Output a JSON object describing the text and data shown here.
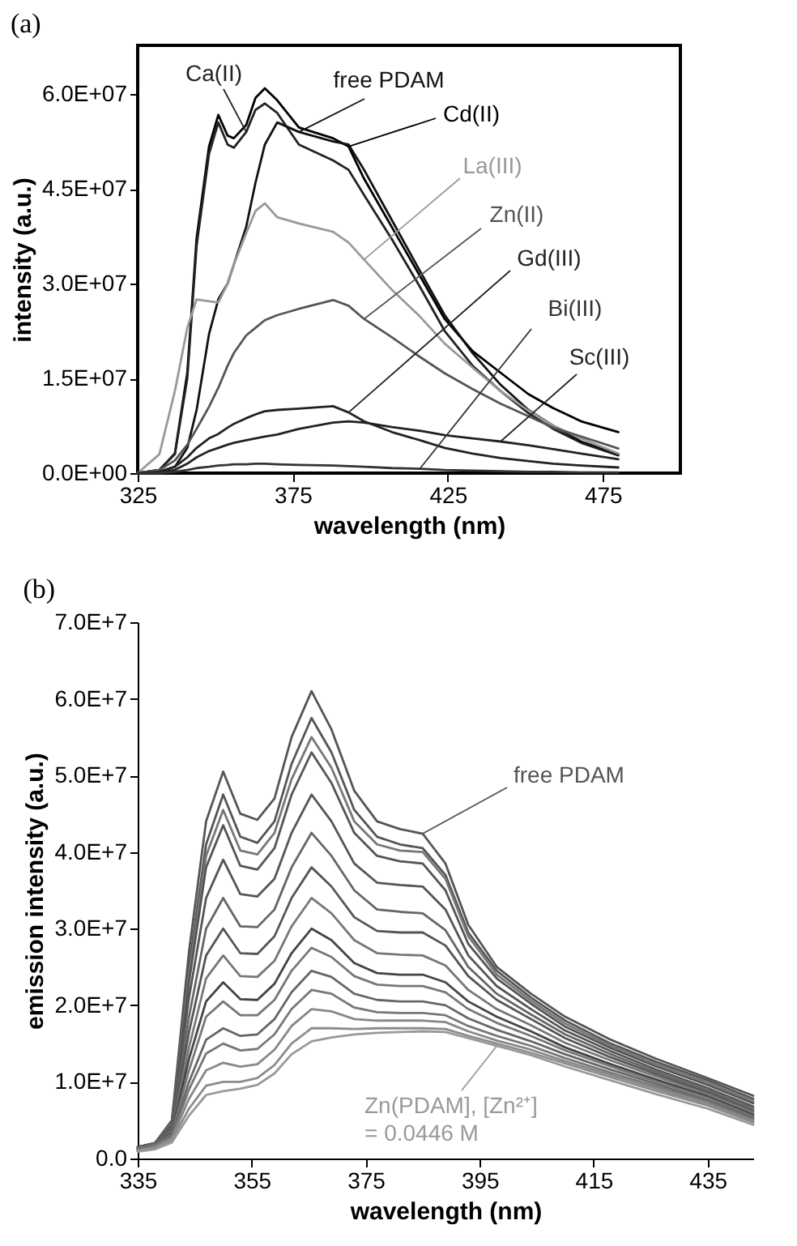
{
  "chart_data": [
    {
      "type": "line",
      "title": "(a)",
      "xlabel": "wavelength (nm)",
      "ylabel": "intensity (a.u.)",
      "xlim": [
        325,
        500
      ],
      "xticks": [
        325,
        375,
        425,
        475
      ],
      "ylim": [
        0,
        67700000.0
      ],
      "yticks": [
        {
          "value": 0,
          "label": "0.0E+00"
        },
        {
          "value": 15000000.0,
          "label": "1.5E+07"
        },
        {
          "value": 30000000.0,
          "label": "3.0E+07"
        },
        {
          "value": 45000000.0,
          "label": "4.5E+07"
        },
        {
          "value": 60000000.0,
          "label": "6.0E+07"
        }
      ],
      "grid": false,
      "marker": "none",
      "line_style": "solid",
      "x": [
        325,
        332,
        337,
        341,
        344,
        348,
        351,
        354,
        356,
        360,
        363,
        366,
        370,
        377,
        388,
        393,
        398,
        407,
        416,
        424,
        433,
        442,
        451,
        459,
        468,
        480
      ],
      "series": [
        {
          "name": "Cd(II)",
          "color": "#000000",
          "values": [
            0,
            500000.0,
            3100000.0,
            15900000.0,
            37200000.0,
            51700000.0,
            56700000.0,
            53400000.0,
            53000000.0,
            55100000.0,
            59400000.0,
            60900000.0,
            59000000.0,
            54700000.0,
            53000000.0,
            51700000.0,
            46600000.0,
            38900000.0,
            31200000.0,
            24400000.0,
            19300000.0,
            15900000.0,
            12500000.0,
            10300000.0,
            8200000.0,
            6500000.0
          ]
        },
        {
          "name": "Ca(II)",
          "color": "#222222",
          "values": [
            0,
            500000.0,
            3000000.0,
            15000000.0,
            36000000.0,
            50500000.0,
            55500000.0,
            52000000.0,
            51500000.0,
            54000000.0,
            57500000.0,
            58500000.0,
            57000000.0,
            52000000.0,
            49500000.0,
            48000000.0,
            44000000.0,
            37000000.0,
            29500000.0,
            22500000.0,
            17000000.0,
            13000000.0,
            9500000.0,
            7000000.0,
            4800000.0,
            2800000.0
          ]
        },
        {
          "name": "free PDAM",
          "color": "#111111",
          "values": [
            0,
            200000.0,
            1000000.0,
            4000000.0,
            10000000.0,
            22000000.0,
            27500000.0,
            30000000.0,
            33000000.0,
            39000000.0,
            46000000.0,
            52000000.0,
            55500000.0,
            54000000.0,
            52500000.0,
            52000000.0,
            48000000.0,
            40000000.0,
            32000000.0,
            25000000.0,
            19000000.0,
            14000000.0,
            10000000.0,
            7500000.0,
            5000000.0,
            3000000.0
          ]
        },
        {
          "name": "La(III)",
          "color": "#999999",
          "values": [
            0,
            3000000.0,
            13000000.0,
            23000000.0,
            27500000.0,
            27200000.0,
            27000000.0,
            30000000.0,
            33000000.0,
            38000000.0,
            41500000.0,
            42700000.0,
            40500000.0,
            39500000.0,
            38200000.0,
            36500000.0,
            33800000.0,
            29000000.0,
            24800000.0,
            20500000.0,
            16700000.0,
            13000000.0,
            9900000.0,
            7500000.0,
            5500000.0,
            3100000.0
          ]
        },
        {
          "name": "Zn(II)",
          "color": "#555555",
          "values": [
            0,
            500000.0,
            2000000.0,
            4500000.0,
            7000000.0,
            10500000.0,
            13500000.0,
            17000000.0,
            19000000.0,
            21800000.0,
            23000000.0,
            24200000.0,
            25000000.0,
            26000000.0,
            27400000.0,
            26500000.0,
            24400000.0,
            21500000.0,
            18400000.0,
            15800000.0,
            13300000.0,
            11000000.0,
            9000000.0,
            7200000.0,
            5800000.0,
            3900000.0
          ]
        },
        {
          "name": "Gd(III)",
          "color": "#222222",
          "values": [
            0,
            200000.0,
            1000000.0,
            2500000.0,
            4000000.0,
            5500000.0,
            6200000.0,
            7200000.0,
            7800000.0,
            8700000.0,
            9300000.0,
            9800000.0,
            10000000.0,
            10200000.0,
            10600000.0,
            9600000.0,
            8200000.0,
            6500000.0,
            5200000.0,
            4000000.0,
            3100000.0,
            2400000.0,
            1900000.0,
            1500000.0,
            1200000.0,
            900000.0
          ]
        },
        {
          "name": "Sc(III)",
          "color": "#222222",
          "values": [
            0,
            100000.0,
            500000.0,
            1500000.0,
            2500000.0,
            3500000.0,
            4000000.0,
            4500000.0,
            4800000.0,
            5200000.0,
            5500000.0,
            5800000.0,
            6100000.0,
            7000000.0,
            8000000.0,
            8200000.0,
            8000000.0,
            7300000.0,
            6700000.0,
            6000000.0,
            5500000.0,
            5000000.0,
            4400000.0,
            3800000.0,
            3100000.0,
            2200000.0
          ]
        },
        {
          "name": "Bi(III)",
          "color": "#333333",
          "values": [
            0,
            0,
            200000.0,
            500000.0,
            800000.0,
            1000000.0,
            1200000.0,
            1300000.0,
            1400000.0,
            1400000.0,
            1500000.0,
            1500000.0,
            1400000.0,
            1300000.0,
            1200000.0,
            1100000.0,
            1000000.0,
            800000.0,
            700000.0,
            500000.0,
            400000.0,
            300000.0,
            200000.0,
            200000.0,
            100000.0,
            100000.0
          ]
        }
      ]
    },
    {
      "type": "line",
      "title": "(b)",
      "xlabel": "wavelength (nm)",
      "ylabel": "emission intensity (a.u.)",
      "xlim": [
        335,
        443
      ],
      "xticks": [
        335,
        355,
        375,
        395,
        415,
        435
      ],
      "ylim": [
        0,
        70000000.0
      ],
      "yticks": [
        {
          "value": 0,
          "label": "0.0"
        },
        {
          "value": 10000000.0,
          "label": "1.0E+7"
        },
        {
          "value": 20000000.0,
          "label": "2.0E+7"
        },
        {
          "value": 30000000.0,
          "label": "3.0E+7"
        },
        {
          "value": 40000000.0,
          "label": "4.0E+7"
        },
        {
          "value": 50000000.0,
          "label": "5.0E+7"
        },
        {
          "value": 60000000.0,
          "label": "6.0E+7"
        },
        {
          "value": 70000000.0,
          "label": "7.0E+7"
        }
      ],
      "grid": false,
      "marker": "none",
      "line_style": "solid",
      "x": [
        335,
        338,
        341,
        344,
        347,
        350,
        353,
        356,
        359,
        362,
        365.5,
        369,
        373,
        377,
        381,
        385,
        389,
        393,
        398,
        404,
        410,
        418,
        426,
        435,
        443
      ],
      "series": [
        {
          "name": "free PDAM",
          "color": "#555555",
          "values": [
            1500000.0,
            2000000.0,
            5000000.0,
            27000000.0,
            44000000.0,
            50500000.0,
            45000000.0,
            44200000.0,
            47000000.0,
            55000000.0,
            61000000.0,
            56000000.0,
            48000000.0,
            44000000.0,
            43000000.0,
            42400000.0,
            38500000.0,
            30500000.0,
            25000000.0,
            21500000.0,
            18500000.0,
            15500000.0,
            13000000.0,
            10500000.0,
            8200000.0
          ]
        },
        {
          "color": "#555555",
          "values": [
            1500000.0,
            2000000.0,
            4800000.0,
            25000000.0,
            41000000.0,
            47500000.0,
            42000000.0,
            41200000.0,
            44000000.0,
            51500000.0,
            57500000.0,
            53000000.0,
            45500000.0,
            42000000.0,
            41000000.0,
            40500000.0,
            37000000.0,
            29500000.0,
            24500000.0,
            21000000.0,
            18000000.0,
            15000000.0,
            12600000.0,
            10200000.0,
            7800000.0
          ]
        },
        {
          "color": "#777777",
          "values": [
            1500000.0,
            2000000.0,
            4600000.0,
            24000000.0,
            39500000.0,
            45500000.0,
            40200000.0,
            39700000.0,
            42500000.0,
            49500000.0,
            55000000.0,
            51000000.0,
            44000000.0,
            41000000.0,
            40200000.0,
            40000000.0,
            36500000.0,
            29000000.0,
            24000000.0,
            20600000.0,
            17600000.0,
            14700000.0,
            12300000.0,
            9900000.0,
            7500000.0
          ]
        },
        {
          "color": "#555555",
          "values": [
            1500000.0,
            2000000.0,
            4400000.0,
            23000000.0,
            38000000.0,
            43500000.0,
            38200000.0,
            37700000.0,
            40500000.0,
            47500000.0,
            53000000.0,
            49000000.0,
            42500000.0,
            39500000.0,
            38800000.0,
            38500000.0,
            35000000.0,
            28000000.0,
            23500000.0,
            20200000.0,
            17200000.0,
            14400000.0,
            12000000.0,
            9600000.0,
            7200000.0
          ]
        },
        {
          "color": "#555555",
          "values": [
            1400000.0,
            1900000.0,
            4200000.0,
            21000000.0,
            34000000.0,
            39000000.0,
            34500000.0,
            34200000.0,
            36500000.0,
            42500000.0,
            47500000.0,
            44000000.0,
            38500000.0,
            36000000.0,
            35700000.0,
            35500000.0,
            32500000.0,
            26500000.0,
            22500000.0,
            19500000.0,
            16700000.0,
            14000000.0,
            11600000.0,
            9200000.0,
            6800000.0
          ]
        },
        {
          "color": "#666666",
          "values": [
            1400000.0,
            1900000.0,
            4000000.0,
            18500000.0,
            30000000.0,
            34000000.0,
            30300000.0,
            30200000.0,
            32500000.0,
            38000000.0,
            42500000.0,
            39500000.0,
            35000000.0,
            32500000.0,
            32200000.0,
            32000000.0,
            29800000.0,
            25000000.0,
            21500000.0,
            18800000.0,
            16200000.0,
            13600000.0,
            11300000.0,
            8900000.0,
            6500000.0
          ]
        },
        {
          "color": "#555555",
          "values": [
            1300000.0,
            1800000.0,
            3800000.0,
            16500000.0,
            26500000.0,
            30000000.0,
            26800000.0,
            26700000.0,
            29000000.0,
            34000000.0,
            38000000.0,
            35500000.0,
            31500000.0,
            29700000.0,
            29500000.0,
            29500000.0,
            27800000.0,
            23800000.0,
            20700000.0,
            18200000.0,
            15700000.0,
            13200000.0,
            11000000.0,
            8600000.0,
            6200000.0
          ]
        },
        {
          "color": "#777777",
          "values": [
            1300000.0,
            1800000.0,
            3600000.0,
            14500000.0,
            23500000.0,
            26500000.0,
            23800000.0,
            23700000.0,
            25800000.0,
            30300000.0,
            34000000.0,
            32000000.0,
            28500000.0,
            26800000.0,
            26600000.0,
            26500000.0,
            25200000.0,
            22000000.0,
            19500000.0,
            17400000.0,
            15100000.0,
            12800000.0,
            10700000.0,
            8400000.0,
            6000000.0
          ]
        },
        {
          "color": "#444444",
          "values": [
            1200000.0,
            1700000.0,
            3400000.0,
            13000000.0,
            20500000.0,
            23000000.0,
            20800000.0,
            20700000.0,
            22800000.0,
            26800000.0,
            30000000.0,
            28500000.0,
            25500000.0,
            24200000.0,
            24000000.0,
            24000000.0,
            23000000.0,
            20500000.0,
            18500000.0,
            16600000.0,
            14500000.0,
            12300000.0,
            10300000.0,
            8100000.0,
            5700000.0
          ]
        },
        {
          "color": "#777777",
          "values": [
            1200000.0,
            1700000.0,
            3200000.0,
            11500000.0,
            18500000.0,
            20500000.0,
            18700000.0,
            18700000.0,
            20700000.0,
            24500000.0,
            27500000.0,
            26300000.0,
            23800000.0,
            22700000.0,
            22500000.0,
            22500000.0,
            21700000.0,
            19500000.0,
            17700000.0,
            16000000.0,
            14100000.0,
            12000000.0,
            10000000.0,
            7900000.0,
            5500000.0
          ]
        },
        {
          "color": "#666666",
          "values": [
            1100000.0,
            1600000.0,
            3000000.0,
            10000000.0,
            15500000.0,
            17000000.0,
            16000000.0,
            16200000.0,
            18200000.0,
            21700000.0,
            24500000.0,
            23700000.0,
            21500000.0,
            20700000.0,
            20500000.0,
            20500000.0,
            20000000.0,
            18300000.0,
            16800000.0,
            15300000.0,
            13600000.0,
            11600000.0,
            9700000.0,
            7600000.0,
            5300000.0
          ]
        },
        {
          "color": "#777777",
          "values": [
            1100000.0,
            1600000.0,
            2800000.0,
            9000000.0,
            13700000.0,
            15000000.0,
            14100000.0,
            14300000.0,
            16200000.0,
            19500000.0,
            22000000.0,
            21500000.0,
            19700000.0,
            19100000.0,
            19000000.0,
            19000000.0,
            18700000.0,
            17300000.0,
            16000000.0,
            14700000.0,
            13100000.0,
            11200000.0,
            9400000.0,
            7400000.0,
            5100000.0
          ]
        },
        {
          "color": "#888888",
          "values": [
            1000000.0,
            1500000.0,
            2600000.0,
            7800000.0,
            11500000.0,
            12500000.0,
            12000000.0,
            12300000.0,
            14200000.0,
            17300000.0,
            19500000.0,
            19200000.0,
            18200000.0,
            18000000.0,
            18000000.0,
            18000000.0,
            17800000.0,
            16600000.0,
            15400000.0,
            14200000.0,
            12700000.0,
            10900000.0,
            9100000.0,
            7100000.0,
            4900000.0
          ]
        },
        {
          "color": "#8c8c8c",
          "values": [
            1000000.0,
            1400000.0,
            2400000.0,
            6500000.0,
            9500000.0,
            10000000.0,
            10000000.0,
            10500000.0,
            12200000.0,
            15000000.0,
            17000000.0,
            17000000.0,
            16900000.0,
            17000000.0,
            17000000.0,
            17000000.0,
            16900000.0,
            16000000.0,
            15000000.0,
            13800000.0,
            12400000.0,
            10600000.0,
            8800000.0,
            6900000.0,
            4700000.0
          ]
        },
        {
          "name": "Zn(PDAM], [Zn²⁺]\n= 0.0446 M",
          "color": "#999999",
          "values": [
            900000.0,
            1200000.0,
            2100000.0,
            5600000.0,
            8300000.0,
            8800000.0,
            9100000.0,
            9600000.0,
            11100000.0,
            13600000.0,
            15300000.0,
            15800000.0,
            16200000.0,
            16400000.0,
            16500000.0,
            16600000.0,
            16500000.0,
            15700000.0,
            14700000.0,
            13500000.0,
            12000000.0,
            10200000.0,
            8400000.0,
            6500000.0,
            4400000.0
          ]
        }
      ]
    }
  ]
}
